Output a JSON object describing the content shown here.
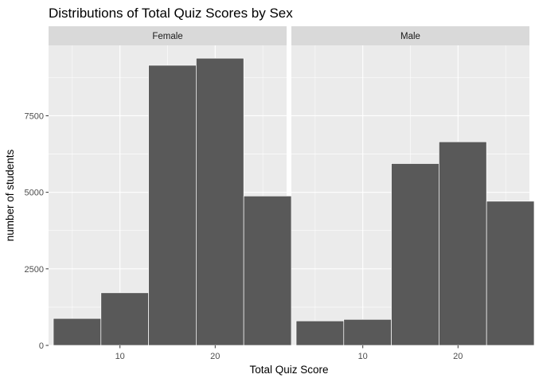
{
  "chart_data": {
    "type": "bar",
    "title": "Distributions of Total Quiz Scores by Sex",
    "xlabel": "Total Quiz Score",
    "ylabel": "number of students",
    "xlim": [
      2.5,
      27.5
    ],
    "ylim": [
      0,
      9800
    ],
    "x_ticks": [
      10,
      20
    ],
    "y_ticks": [
      0,
      2500,
      5000,
      7500
    ],
    "bin_edges": [
      3,
      8,
      13,
      18,
      23,
      28
    ],
    "grid": true,
    "panels": [
      {
        "name": "Female",
        "values": [
          880,
          1720,
          9150,
          9380,
          4880
        ]
      },
      {
        "name": "Male",
        "values": [
          800,
          850,
          5940,
          6650,
          4710
        ]
      }
    ],
    "colors": {
      "bar_fill": "#595959",
      "bar_outline": "#ffffff",
      "panel_background": "#ebebeb",
      "grid": "#ffffff",
      "strip_background": "#d9d9d9"
    }
  }
}
